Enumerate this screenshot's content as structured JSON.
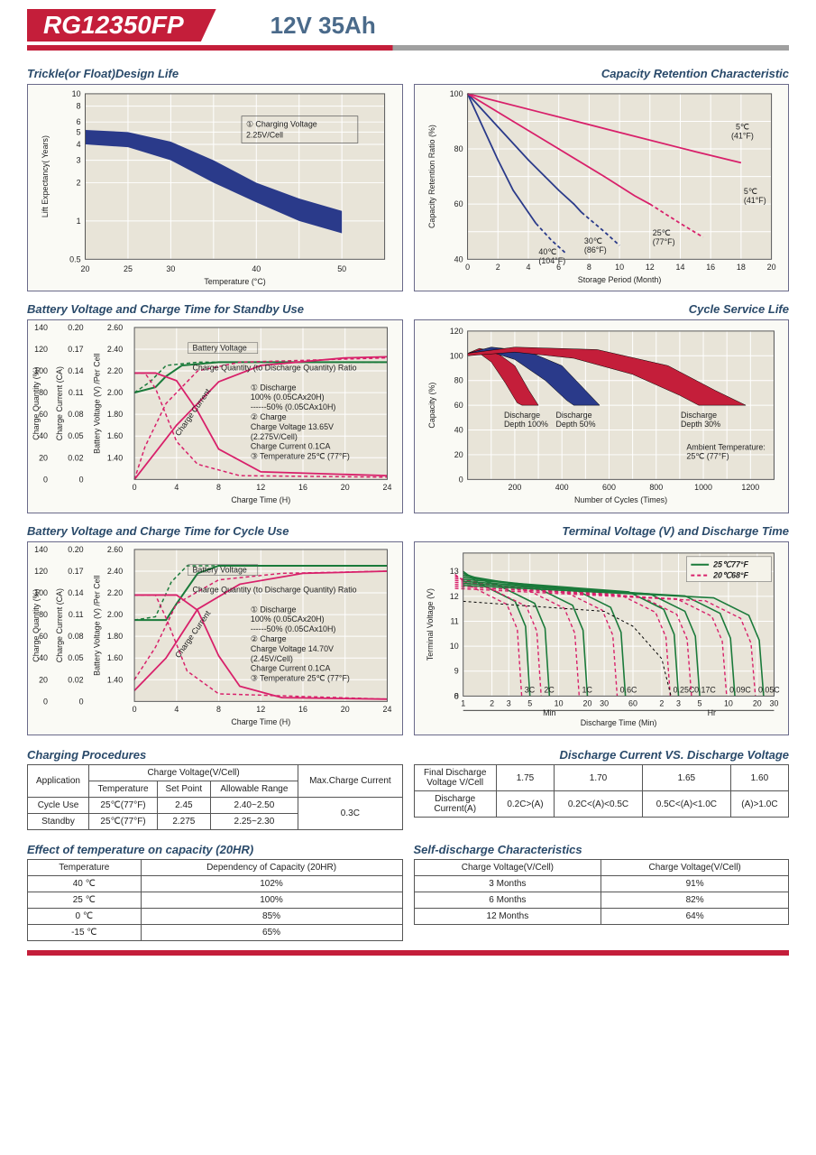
{
  "header": {
    "model": "RG12350FP",
    "spec": "12V  35Ah"
  },
  "colors": {
    "red": "#c41e3a",
    "blue": "#2a3a8a",
    "navy": "#1a2a6a",
    "magenta": "#d8206a",
    "green": "#1a7a3a",
    "darkgreen": "#0a5a2a",
    "plot_bg": "#e8e4d8",
    "box_bg": "#fafaf5",
    "border": "#6a6a8a",
    "title_text": "#2a4a6a",
    "axis": "#222",
    "black": "#000"
  },
  "chart1": {
    "title": "Trickle(or Float)Design Life",
    "xlabel": "Temperature (°C)",
    "ylabel": "Lift  Expectancy( Years)",
    "xticks": [
      "20",
      "25",
      "30",
      "40",
      "50"
    ],
    "yticks": [
      "0.5",
      "1",
      "2",
      "3",
      "4",
      "5",
      "6",
      "8",
      "10"
    ],
    "annotation": "① Charging Voltage\n    2.25V/Cell",
    "band_color": "#2a3a8a",
    "band_upper": [
      [
        20,
        5.2
      ],
      [
        25,
        5.0
      ],
      [
        30,
        4.2
      ],
      [
        35,
        3.0
      ],
      [
        40,
        2.0
      ],
      [
        45,
        1.5
      ],
      [
        50,
        1.2
      ]
    ],
    "band_lower": [
      [
        20,
        4.0
      ],
      [
        25,
        3.8
      ],
      [
        30,
        3.0
      ],
      [
        35,
        2.0
      ],
      [
        40,
        1.4
      ],
      [
        45,
        1.0
      ],
      [
        50,
        0.8
      ]
    ]
  },
  "chart2": {
    "title": "Capacity  Retention  Characteristic",
    "xlabel": "Storage Period (Month)",
    "ylabel": "Capacity Retention Ratio (%)",
    "xticks": [
      "0",
      "2",
      "4",
      "6",
      "8",
      "10",
      "12",
      "14",
      "16",
      "18",
      "20"
    ],
    "yticks": [
      "40",
      "60",
      "80",
      "100"
    ],
    "curves": [
      {
        "label": "40℃\n(104°F)",
        "color": "#2a3a8a",
        "dash": "",
        "pts": [
          [
            0,
            100
          ],
          [
            1,
            88
          ],
          [
            2,
            76
          ],
          [
            3,
            65
          ],
          [
            4,
            57
          ],
          [
            4.5,
            53
          ]
        ],
        "dashext": [
          [
            4.5,
            53
          ],
          [
            5.5,
            47
          ],
          [
            6.5,
            42
          ]
        ]
      },
      {
        "label": "30℃\n(86°F)",
        "color": "#2a3a8a",
        "dash": "",
        "pts": [
          [
            0,
            100
          ],
          [
            2,
            88
          ],
          [
            4,
            76
          ],
          [
            6,
            65
          ],
          [
            7,
            60
          ],
          [
            7.5,
            57
          ]
        ],
        "dashext": [
          [
            7.5,
            57
          ],
          [
            9,
            50
          ],
          [
            10,
            45
          ]
        ]
      },
      {
        "label": "25℃\n(77°F)",
        "color": "#d8206a",
        "dash": "",
        "pts": [
          [
            0,
            100
          ],
          [
            3,
            90
          ],
          [
            6,
            80
          ],
          [
            9,
            70
          ],
          [
            11,
            63
          ],
          [
            12,
            60
          ]
        ],
        "dashext": [
          [
            12,
            60
          ],
          [
            14,
            53
          ],
          [
            15.5,
            48
          ]
        ]
      },
      {
        "label": "5℃\n(41°F)",
        "color": "#d8206a",
        "dash": "",
        "pts": [
          [
            0,
            100
          ],
          [
            5,
            93
          ],
          [
            10,
            86
          ],
          [
            15,
            79
          ],
          [
            18,
            75
          ]
        ],
        "dashext": []
      }
    ]
  },
  "chart3": {
    "title": "Battery Voltage and Charge Time for Standby Use",
    "xlabel": "Charge Time (H)",
    "y1": "Charge Quantity (%)",
    "y2": "Charge Current (CA)",
    "y3": "Battery Voltage (V) /Per Cell",
    "xticks": [
      "0",
      "4",
      "8",
      "12",
      "16",
      "20",
      "24"
    ],
    "y1ticks": [
      "0",
      "20",
      "40",
      "60",
      "80",
      "100",
      "120",
      "140"
    ],
    "y2ticks": [
      "0",
      "0.02",
      "0.05",
      "0.08",
      "0.11",
      "0.14",
      "0.17",
      "0.20"
    ],
    "y3ticks": [
      "",
      "1.40",
      "1.60",
      "1.80",
      "2.00",
      "2.20",
      "2.40",
      "2.60"
    ],
    "annot": "① Discharge\n     100% (0.05CAx20H)\n     ------50% (0.05CAx10H)\n② Charge\n     Charge Voltage 13.65V\n     (2.275V/Cell)\n     Charge Current 0.1CA\n③ Temperature 25℃ (77°F)",
    "labels": {
      "bv": "Battery Voltage",
      "cq": "Charge Quantity (to Discharge Quantity) Ratio",
      "cc": "Charge Current"
    },
    "green_solid": [
      [
        0,
        2.0
      ],
      [
        2,
        2.05
      ],
      [
        3,
        2.15
      ],
      [
        4.5,
        2.25
      ],
      [
        8,
        2.28
      ],
      [
        24,
        2.28
      ]
    ],
    "green_dash": [
      [
        0,
        2.0
      ],
      [
        1.5,
        2.1
      ],
      [
        3,
        2.25
      ],
      [
        6,
        2.28
      ],
      [
        24,
        2.28
      ]
    ],
    "mag_cc_solid": [
      [
        0,
        0.14
      ],
      [
        2,
        0.14
      ],
      [
        4,
        0.13
      ],
      [
        6,
        0.09
      ],
      [
        8,
        0.04
      ],
      [
        12,
        0.01
      ],
      [
        24,
        0.005
      ]
    ],
    "mag_cc_dash": [
      [
        0,
        0.14
      ],
      [
        1,
        0.14
      ],
      [
        2,
        0.12
      ],
      [
        4,
        0.05
      ],
      [
        6,
        0.02
      ],
      [
        10,
        0.005
      ],
      [
        24,
        0.003
      ]
    ],
    "mag_cq_solid": [
      [
        0,
        0
      ],
      [
        2,
        25
      ],
      [
        4,
        50
      ],
      [
        8,
        90
      ],
      [
        12,
        105
      ],
      [
        20,
        112
      ],
      [
        24,
        113
      ]
    ],
    "mag_cq_dash": [
      [
        0,
        0
      ],
      [
        1,
        30
      ],
      [
        3,
        70
      ],
      [
        6,
        100
      ],
      [
        10,
        108
      ],
      [
        24,
        112
      ]
    ]
  },
  "chart4": {
    "title": "Cycle Service Life",
    "xlabel": "Number of Cycles (Times)",
    "ylabel": "Capacity (%)",
    "xticks": [
      "200",
      "400",
      "600",
      "800",
      "1000",
      "1200"
    ],
    "yticks": [
      "0",
      "20",
      "40",
      "60",
      "80",
      "100",
      "120"
    ],
    "ambient": "Ambient Temperature:\n25℃ (77°F)",
    "bands": [
      {
        "label": "Discharge\nDepth 100%",
        "color": "#c41e3a",
        "upper": [
          [
            0,
            102
          ],
          [
            50,
            106
          ],
          [
            120,
            103
          ],
          [
            200,
            92
          ],
          [
            260,
            72
          ],
          [
            300,
            60
          ]
        ],
        "lower": [
          [
            0,
            100
          ],
          [
            50,
            102
          ],
          [
            100,
            95
          ],
          [
            160,
            78
          ],
          [
            210,
            62
          ],
          [
            230,
            60
          ]
        ]
      },
      {
        "label": "Discharge\nDepth 50%",
        "color": "#2a3a8a",
        "upper": [
          [
            0,
            102
          ],
          [
            100,
            107
          ],
          [
            250,
            104
          ],
          [
            400,
            92
          ],
          [
            500,
            72
          ],
          [
            560,
            60
          ]
        ],
        "lower": [
          [
            0,
            100
          ],
          [
            100,
            103
          ],
          [
            200,
            97
          ],
          [
            330,
            80
          ],
          [
            420,
            64
          ],
          [
            450,
            60
          ]
        ]
      },
      {
        "label": "Discharge\nDepth 30%",
        "color": "#c41e3a",
        "upper": [
          [
            0,
            102
          ],
          [
            200,
            107
          ],
          [
            550,
            105
          ],
          [
            850,
            92
          ],
          [
            1050,
            72
          ],
          [
            1180,
            60
          ]
        ],
        "lower": [
          [
            0,
            100
          ],
          [
            200,
            103
          ],
          [
            450,
            98
          ],
          [
            700,
            85
          ],
          [
            900,
            68
          ],
          [
            980,
            60
          ]
        ]
      }
    ]
  },
  "chart5": {
    "title": "Battery Voltage and Charge Time for Cycle Use",
    "annot": "① Discharge\n     100% (0.05CAx20H)\n     ------50% (0.05CAx10H)\n② Charge\n     Charge Voltage 14.70V\n     (2.45V/Cell)\n     Charge Current 0.1CA\n③ Temperature 25℃ (77°F)",
    "green_solid": [
      [
        0,
        1.95
      ],
      [
        3,
        1.95
      ],
      [
        4,
        2.1
      ],
      [
        6,
        2.38
      ],
      [
        8,
        2.45
      ],
      [
        24,
        2.45
      ]
    ],
    "green_dash": [
      [
        0,
        1.95
      ],
      [
        2,
        1.98
      ],
      [
        3.5,
        2.3
      ],
      [
        5,
        2.45
      ],
      [
        24,
        2.45
      ]
    ],
    "mag_cc_solid": [
      [
        0,
        0.14
      ],
      [
        4,
        0.14
      ],
      [
        6,
        0.12
      ],
      [
        8,
        0.06
      ],
      [
        10,
        0.02
      ],
      [
        14,
        0.005
      ],
      [
        24,
        0.003
      ]
    ],
    "mag_cc_dash": [
      [
        0,
        0.14
      ],
      [
        2,
        0.14
      ],
      [
        3,
        0.11
      ],
      [
        5,
        0.04
      ],
      [
        8,
        0.01
      ],
      [
        24,
        0.003
      ]
    ],
    "mag_cq_solid": [
      [
        0,
        10
      ],
      [
        3,
        40
      ],
      [
        6,
        85
      ],
      [
        10,
        108
      ],
      [
        16,
        118
      ],
      [
        24,
        120
      ]
    ],
    "mag_cq_dash": [
      [
        0,
        20
      ],
      [
        2,
        50
      ],
      [
        4,
        90
      ],
      [
        8,
        112
      ],
      [
        14,
        118
      ],
      [
        24,
        120
      ]
    ]
  },
  "chart6": {
    "title": "Terminal Voltage (V) and Discharge Time",
    "xlabel": "Discharge Time (Min)",
    "ylabel": "Terminal Voltage (V)",
    "yticks": [
      "0",
      "8",
      "9",
      "10",
      "11",
      "12",
      "13"
    ],
    "legend": [
      {
        "label": "25℃77°F",
        "color": "#1a7a3a"
      },
      {
        "label": "20℃68°F",
        "color": "#d8206a"
      }
    ],
    "xlabels_min": [
      "1",
      "2",
      "3",
      "5",
      "10",
      "20",
      "30",
      "60"
    ],
    "xlabels_hr": [
      "2",
      "3",
      "5",
      "10",
      "20",
      "30"
    ],
    "rates": [
      "3C",
      "2C",
      "1C",
      "0.6C",
      "0.25C",
      "0.17C",
      "0.09C",
      "0.05C"
    ]
  },
  "table_charging": {
    "title": "Charging Procedures",
    "headers": {
      "app": "Application",
      "cv": "Charge Voltage(V/Cell)",
      "temp": "Temperature",
      "sp": "Set Point",
      "ar": "Allowable Range",
      "max": "Max.Charge Current"
    },
    "rows": [
      {
        "app": "Cycle Use",
        "temp": "25℃(77°F)",
        "sp": "2.45",
        "ar": "2.40~2.50"
      },
      {
        "app": "Standby",
        "temp": "25℃(77°F)",
        "sp": "2.275",
        "ar": "2.25~2.30"
      }
    ],
    "max": "0.3C"
  },
  "table_discharge": {
    "title": "Discharge Current VS. Discharge Voltage",
    "h1": "Final Discharge\nVoltage V/Cell",
    "h2": "Discharge\nCurrent(A)",
    "v": [
      "1.75",
      "1.70",
      "1.65",
      "1.60"
    ],
    "c": [
      "0.2C>(A)",
      "0.2C<(A)<0.5C",
      "0.5C<(A)<1.0C",
      "(A)>1.0C"
    ]
  },
  "table_temp": {
    "title": "Effect of temperature on capacity (20HR)",
    "h": [
      "Temperature",
      "Dependency of Capacity (20HR)"
    ],
    "rows": [
      [
        "40 ℃",
        "102%"
      ],
      [
        "25 ℃",
        "100%"
      ],
      [
        "0 ℃",
        "85%"
      ],
      [
        "-15 ℃",
        "65%"
      ]
    ]
  },
  "table_self": {
    "title": "Self-discharge Characteristics",
    "h": [
      "Charge Voltage(V/Cell)",
      "Charge Voltage(V/Cell)"
    ],
    "rows": [
      [
        "3 Months",
        "91%"
      ],
      [
        "6 Months",
        "82%"
      ],
      [
        "12 Months",
        "64%"
      ]
    ]
  }
}
